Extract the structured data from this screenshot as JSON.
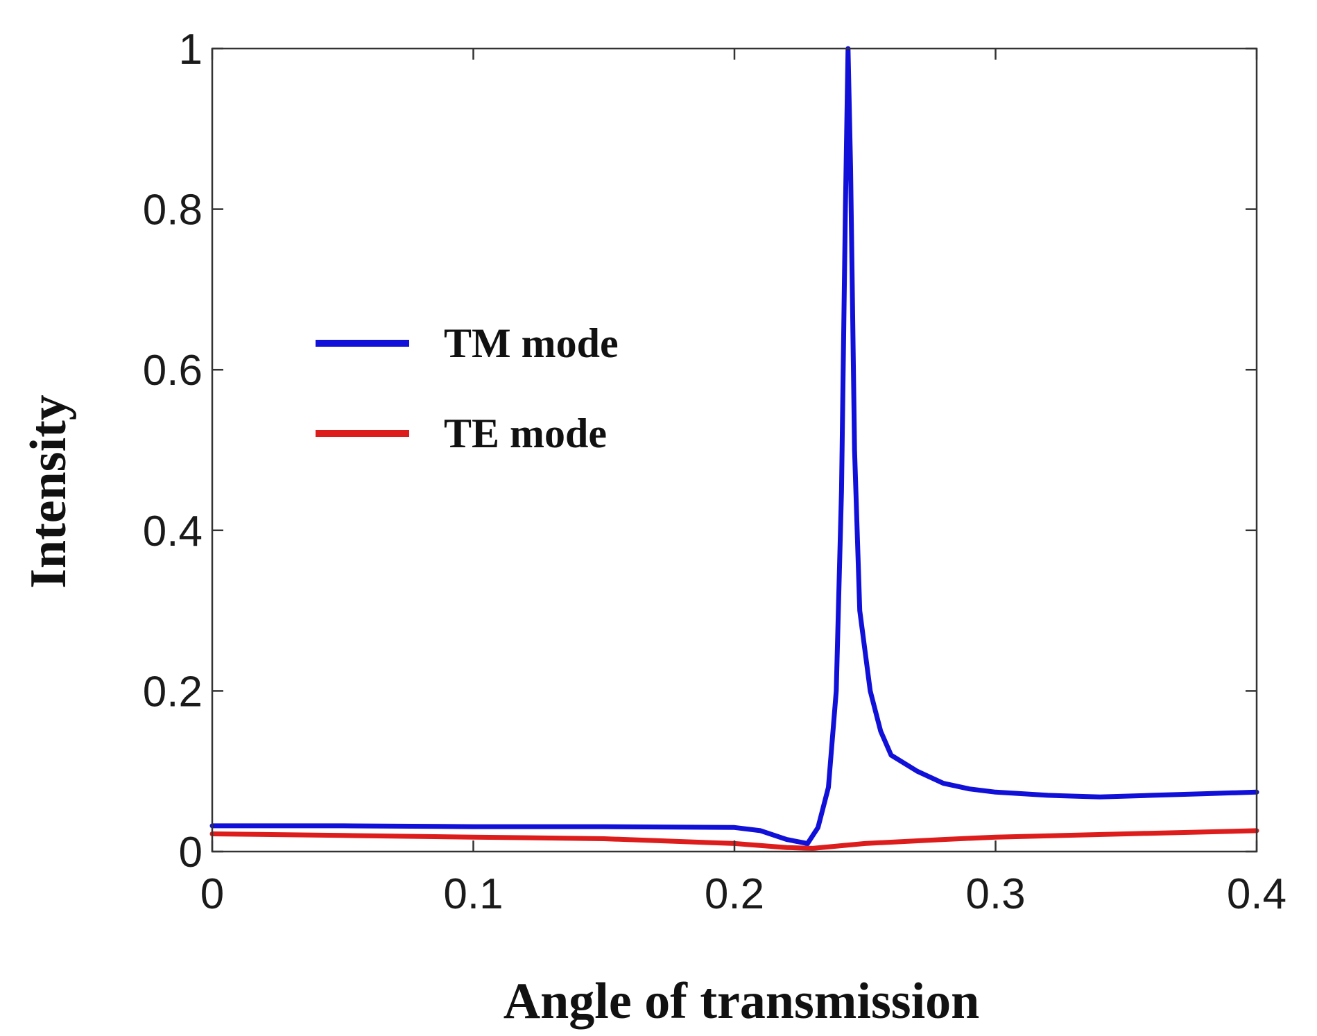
{
  "chart_data": {
    "type": "line",
    "title": "",
    "xlabel": "Angle of transmission",
    "ylabel": "Intensity",
    "xlim": [
      0,
      0.4
    ],
    "ylim": [
      0,
      1
    ],
    "xticks": [
      "0",
      "0.1",
      "0.2",
      "0.3",
      "0.4"
    ],
    "yticks": [
      "0",
      "0.2",
      "0.4",
      "0.6",
      "0.8",
      "1"
    ],
    "grid": false,
    "legend_position": "center-left",
    "series": [
      {
        "name": "TM mode",
        "color": "#1010d8",
        "x": [
          0,
          0.05,
          0.1,
          0.15,
          0.2,
          0.21,
          0.22,
          0.228,
          0.232,
          0.236,
          0.239,
          0.241,
          0.2425,
          0.2435,
          0.2445,
          0.246,
          0.248,
          0.252,
          0.256,
          0.26,
          0.27,
          0.28,
          0.29,
          0.3,
          0.32,
          0.34,
          0.36,
          0.38,
          0.4
        ],
        "y": [
          0.032,
          0.032,
          0.031,
          0.031,
          0.03,
          0.026,
          0.015,
          0.01,
          0.03,
          0.08,
          0.2,
          0.45,
          0.8,
          1.0,
          0.85,
          0.5,
          0.3,
          0.2,
          0.15,
          0.12,
          0.1,
          0.085,
          0.078,
          0.074,
          0.07,
          0.068,
          0.07,
          0.072,
          0.074
        ]
      },
      {
        "name": "TE mode",
        "color": "#dd1c1c",
        "x": [
          0,
          0.05,
          0.1,
          0.15,
          0.2,
          0.22,
          0.23,
          0.25,
          0.28,
          0.3,
          0.35,
          0.4
        ],
        "y": [
          0.022,
          0.02,
          0.018,
          0.016,
          0.01,
          0.005,
          0.004,
          0.01,
          0.015,
          0.018,
          0.022,
          0.026
        ]
      }
    ]
  }
}
